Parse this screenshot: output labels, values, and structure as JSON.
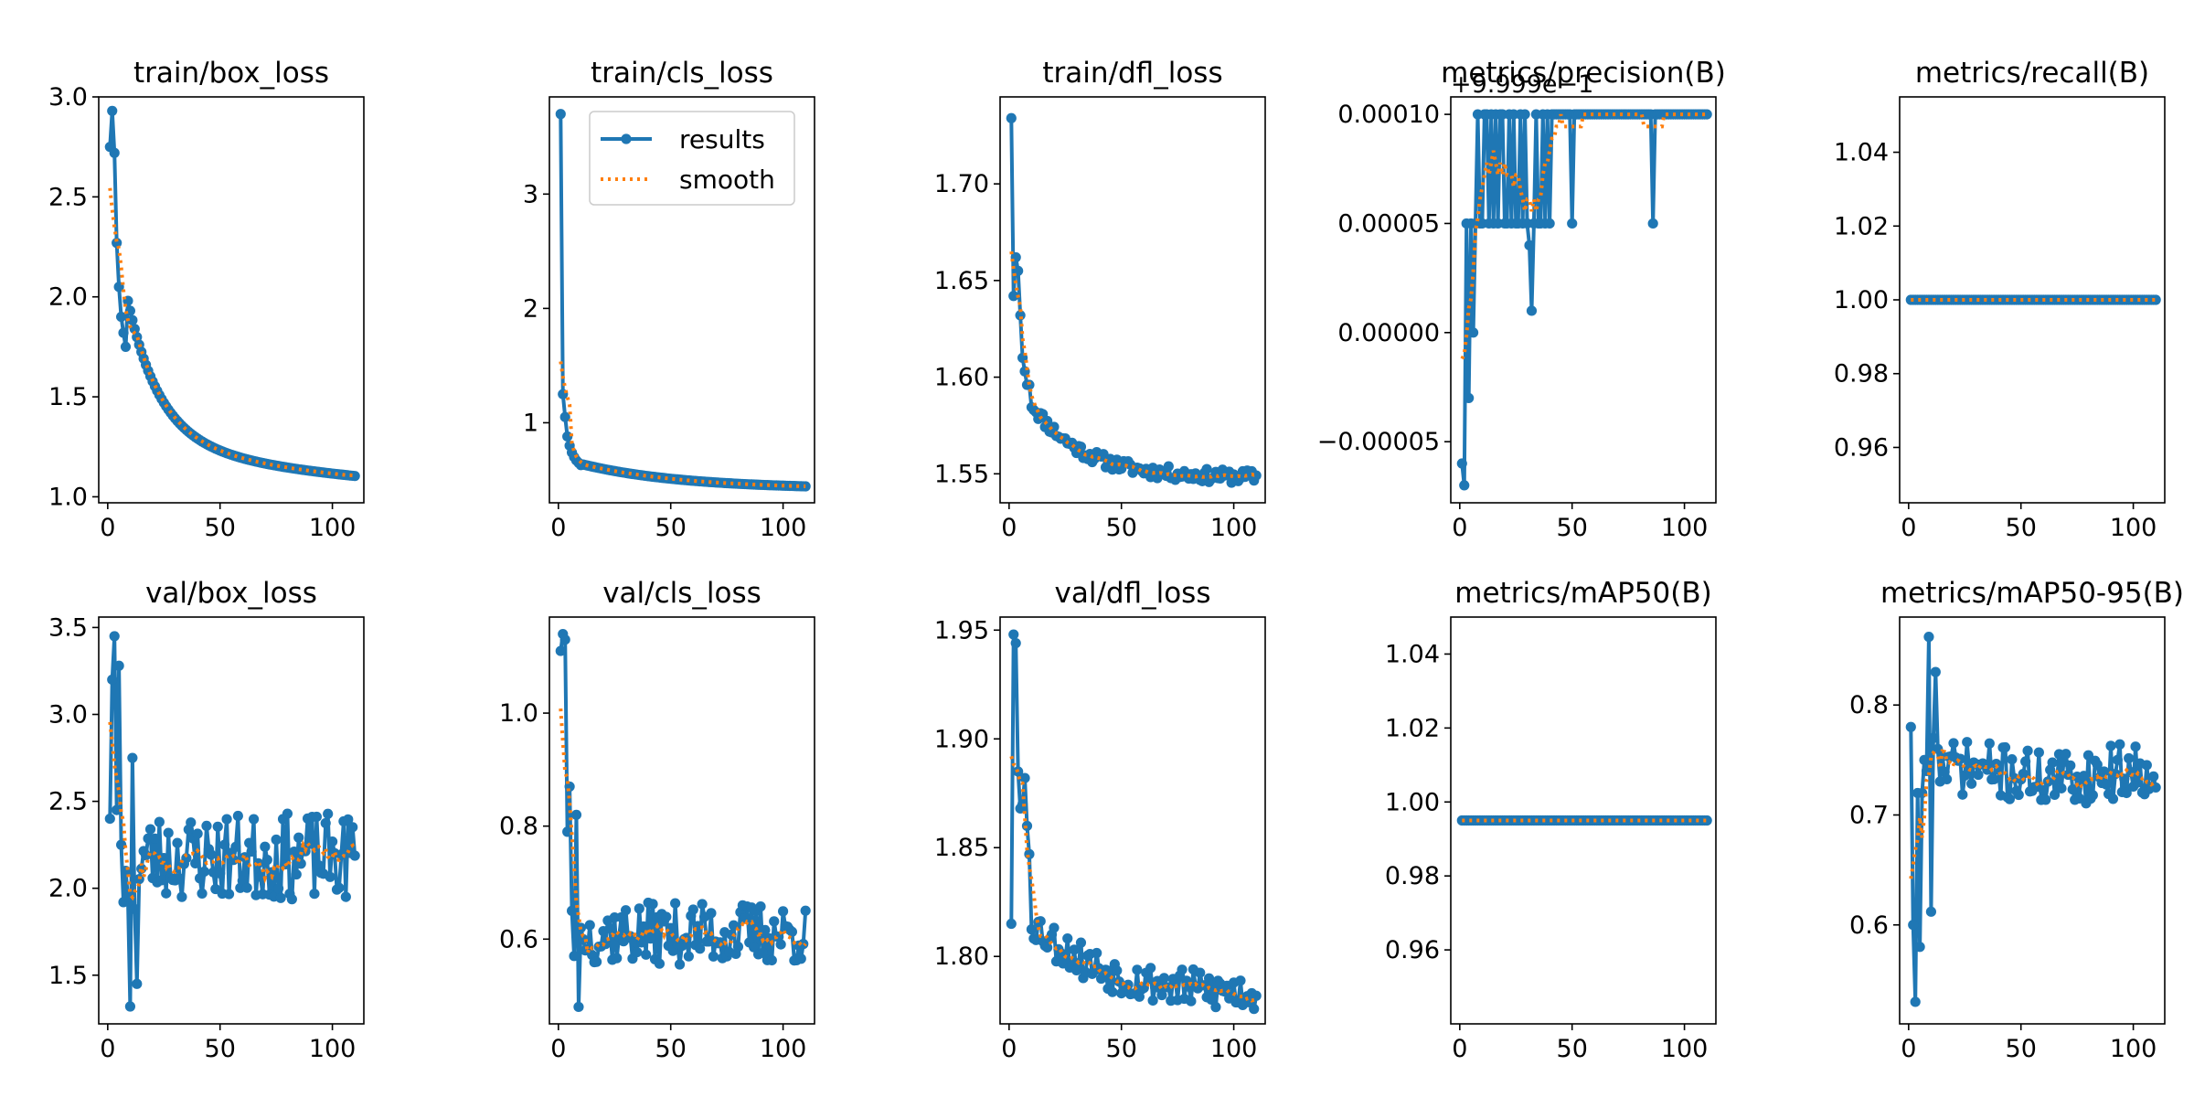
{
  "figure": {
    "background": "#ffffff"
  },
  "colors": {
    "results": "#1f77b4",
    "smooth": "#ff7f0e",
    "axes": "#000000"
  },
  "legend": {
    "results_label": "results",
    "smooth_label": "smooth"
  },
  "chart_data": [
    {
      "type": "line",
      "title": "train/box_loss",
      "xlim": [
        -4,
        114
      ],
      "ylim": [
        0.97,
        3.0
      ],
      "xticks": [
        0,
        50,
        100
      ],
      "yticks": [
        {
          "v": 1.0,
          "label": "1.0"
        },
        {
          "v": 1.5,
          "label": "1.5"
        },
        {
          "v": 2.0,
          "label": "2.0"
        },
        {
          "v": 2.5,
          "label": "2.5"
        },
        {
          "v": 3.0,
          "label": "3.0"
        }
      ],
      "series": {
        "gen": "box_loss"
      }
    },
    {
      "type": "line",
      "title": "train/cls_loss",
      "xlim": [
        -4,
        114
      ],
      "ylim": [
        0.3,
        3.85
      ],
      "xticks": [
        0,
        50,
        100
      ],
      "yticks": [
        {
          "v": 1,
          "label": "1"
        },
        {
          "v": 2,
          "label": "2"
        },
        {
          "v": 3,
          "label": "3"
        }
      ],
      "legend": true,
      "series": {
        "gen": "cls_loss"
      }
    },
    {
      "type": "line",
      "title": "train/dfl_loss",
      "xlim": [
        -4,
        114
      ],
      "ylim": [
        1.535,
        1.745
      ],
      "xticks": [
        0,
        50,
        100
      ],
      "yticks": [
        {
          "v": 1.55,
          "label": "1.55"
        },
        {
          "v": 1.6,
          "label": "1.60"
        },
        {
          "v": 1.65,
          "label": "1.65"
        },
        {
          "v": 1.7,
          "label": "1.70"
        }
      ],
      "series": {
        "gen": "dfl_loss"
      }
    },
    {
      "type": "line",
      "title": "metrics/precision(B)",
      "offset_text": "+9.999e−1",
      "xlim": [
        -4,
        114
      ],
      "ylim": [
        -7.8e-05,
        0.000108
      ],
      "xticks": [
        0,
        50,
        100
      ],
      "yticks": [
        {
          "v": -5e-05,
          "label": "−0.00005"
        },
        {
          "v": 0,
          "label": "0.00000"
        },
        {
          "v": 5e-05,
          "label": "0.00005"
        },
        {
          "v": 0.0001,
          "label": "0.00010"
        }
      ],
      "series": {
        "gen": "precision"
      }
    },
    {
      "type": "line",
      "title": "metrics/recall(B)",
      "xlim": [
        -4,
        114
      ],
      "ylim": [
        0.945,
        1.055
      ],
      "xticks": [
        0,
        50,
        100
      ],
      "yticks": [
        {
          "v": 0.96,
          "label": "0.96"
        },
        {
          "v": 0.98,
          "label": "0.98"
        },
        {
          "v": 1.0,
          "label": "1.00"
        },
        {
          "v": 1.02,
          "label": "1.02"
        },
        {
          "v": 1.04,
          "label": "1.04"
        }
      ],
      "series": {
        "gen": "constant",
        "value": 1.0
      }
    },
    {
      "type": "line",
      "title": "val/box_loss",
      "xlim": [
        -4,
        114
      ],
      "ylim": [
        1.22,
        3.56
      ],
      "xticks": [
        0,
        50,
        100
      ],
      "yticks": [
        {
          "v": 1.5,
          "label": "1.5"
        },
        {
          "v": 2.0,
          "label": "2.0"
        },
        {
          "v": 2.5,
          "label": "2.5"
        },
        {
          "v": 3.0,
          "label": "3.0"
        },
        {
          "v": 3.5,
          "label": "3.5"
        }
      ],
      "series": {
        "gen": "val_box"
      }
    },
    {
      "type": "line",
      "title": "val/cls_loss",
      "xlim": [
        -4,
        114
      ],
      "ylim": [
        0.45,
        1.17
      ],
      "xticks": [
        0,
        50,
        100
      ],
      "yticks": [
        {
          "v": 0.6,
          "label": "0.6"
        },
        {
          "v": 0.8,
          "label": "0.8"
        },
        {
          "v": 1.0,
          "label": "1.0"
        }
      ],
      "series": {
        "gen": "val_cls"
      }
    },
    {
      "type": "line",
      "title": "val/dfl_loss",
      "xlim": [
        -4,
        114
      ],
      "ylim": [
        1.769,
        1.956
      ],
      "xticks": [
        0,
        50,
        100
      ],
      "yticks": [
        {
          "v": 1.8,
          "label": "1.80"
        },
        {
          "v": 1.85,
          "label": "1.85"
        },
        {
          "v": 1.9,
          "label": "1.90"
        },
        {
          "v": 1.95,
          "label": "1.95"
        }
      ],
      "series": {
        "gen": "val_dfl"
      }
    },
    {
      "type": "line",
      "title": "metrics/mAP50(B)",
      "xlim": [
        -4,
        114
      ],
      "ylim": [
        0.94,
        1.05
      ],
      "xticks": [
        0,
        50,
        100
      ],
      "yticks": [
        {
          "v": 0.96,
          "label": "0.96"
        },
        {
          "v": 0.98,
          "label": "0.98"
        },
        {
          "v": 1.0,
          "label": "1.00"
        },
        {
          "v": 1.02,
          "label": "1.02"
        },
        {
          "v": 1.04,
          "label": "1.04"
        }
      ],
      "series": {
        "gen": "constant",
        "value": 0.995
      }
    },
    {
      "type": "line",
      "title": "metrics/mAP50-95(B)",
      "xlim": [
        -4,
        114
      ],
      "ylim": [
        0.51,
        0.88
      ],
      "xticks": [
        0,
        50,
        100
      ],
      "yticks": [
        {
          "v": 0.6,
          "label": "0.6"
        },
        {
          "v": 0.7,
          "label": "0.7"
        },
        {
          "v": 0.8,
          "label": "0.8"
        }
      ],
      "series": {
        "gen": "map5095"
      }
    }
  ]
}
